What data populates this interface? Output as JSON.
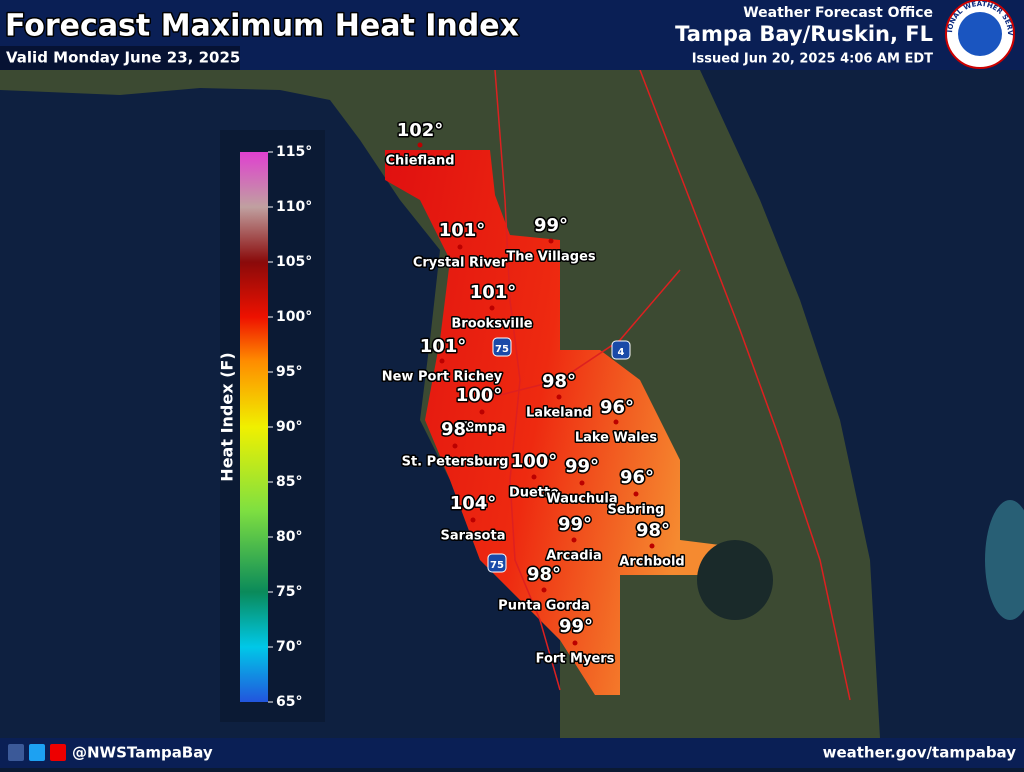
{
  "header": {
    "title": "Forecast Maximum Heat Index",
    "subtitle": "Valid Monday June 23, 2025",
    "office_label": "Weather Forecast Office",
    "office_name": "Tampa Bay/Ruskin, FL",
    "issued": "Issued Jun 20, 2025 4:06 AM EDT",
    "logo_text": "NATIONAL WEATHER SERVICE"
  },
  "legend": {
    "title": "Heat Index (F)",
    "ticks": [
      "115°",
      "110°",
      "105°",
      "100°",
      "95°",
      "90°",
      "85°",
      "80°",
      "75°",
      "70°",
      "65°"
    ]
  },
  "cities": [
    {
      "name": "Chiefland",
      "value": "102°"
    },
    {
      "name": "Crystal River",
      "value": "101°"
    },
    {
      "name": "The Villages",
      "value": "99°"
    },
    {
      "name": "Brooksville",
      "value": "101°"
    },
    {
      "name": "New Port Richey",
      "value": "101°"
    },
    {
      "name": "Tampa",
      "value": "100°"
    },
    {
      "name": "St. Petersburg",
      "value": "98°"
    },
    {
      "name": "Lakeland",
      "value": "98°"
    },
    {
      "name": "Lake Wales",
      "value": "96°"
    },
    {
      "name": "Duette",
      "value": "100°"
    },
    {
      "name": "Wauchula",
      "value": "99°"
    },
    {
      "name": "Sebring",
      "value": "96°"
    },
    {
      "name": "Sarasota",
      "value": "104°"
    },
    {
      "name": "Archbold",
      "value": "98°"
    },
    {
      "name": "Arcadia",
      "value": "99°"
    },
    {
      "name": "Punta Gorda",
      "value": "98°"
    },
    {
      "name": "Fort Myers",
      "value": "99°"
    }
  ],
  "shields": [
    "75",
    "4",
    "75"
  ],
  "footer": {
    "handle": "@NWSTampaBay",
    "url": "weather.gov/tampabay"
  }
}
